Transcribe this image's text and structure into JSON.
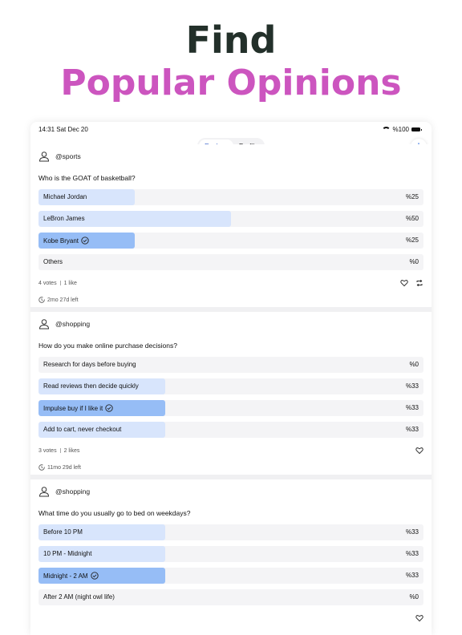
{
  "hero": {
    "line1": "Find",
    "line2": "Popular Opinions"
  },
  "status": {
    "time": "14:31  Sat Dec 20",
    "battery": "%100"
  },
  "nav": {
    "tabs": [
      "Explore",
      "Profile"
    ],
    "active_tab": "Explore",
    "add_label": "+"
  },
  "colors": {
    "accent": "#2b57c8",
    "fill_light": "#d8e5fc",
    "fill_selected": "#96bdf6",
    "hero_pink": "#cc55bf",
    "hero_dark": "#23302a"
  },
  "polls": [
    {
      "user": "@sports",
      "question": "Who is the GOAT of basketball?",
      "options": [
        {
          "label": "Michael Jordan",
          "percent": "%25",
          "fraction": 0.25,
          "selected": false
        },
        {
          "label": "LeBron James",
          "percent": "%50",
          "fraction": 0.5,
          "selected": false
        },
        {
          "label": "Kobe Bryant",
          "percent": "%25",
          "fraction": 0.25,
          "selected": true
        },
        {
          "label": "Others",
          "percent": "%0",
          "fraction": 0,
          "selected": false
        }
      ],
      "votes": "4 votes",
      "likes": "1 like",
      "time_left": "2mo 27d left"
    },
    {
      "user": "@shopping",
      "question": "How do you make online purchase decisions?",
      "options": [
        {
          "label": "Research for days before buying",
          "percent": "%0",
          "fraction": 0,
          "selected": false
        },
        {
          "label": "Read reviews then decide quickly",
          "percent": "%33",
          "fraction": 0.33,
          "selected": false
        },
        {
          "label": "Impulse buy if I like it",
          "percent": "%33",
          "fraction": 0.33,
          "selected": true
        },
        {
          "label": "Add to cart, never checkout",
          "percent": "%33",
          "fraction": 0.33,
          "selected": false
        }
      ],
      "votes": "3 votes",
      "likes": "2 likes",
      "time_left": "11mo 29d left"
    },
    {
      "user": "@shopping",
      "question": "What time do you usually go to bed on weekdays?",
      "options": [
        {
          "label": "Before 10 PM",
          "percent": "%33",
          "fraction": 0.33,
          "selected": false
        },
        {
          "label": "10 PM - Midnight",
          "percent": "%33",
          "fraction": 0.33,
          "selected": false
        },
        {
          "label": "Midnight - 2 AM",
          "percent": "%33",
          "fraction": 0.33,
          "selected": true
        },
        {
          "label": "After 2 AM (night owl life)",
          "percent": "%0",
          "fraction": 0,
          "selected": false
        }
      ]
    }
  ]
}
